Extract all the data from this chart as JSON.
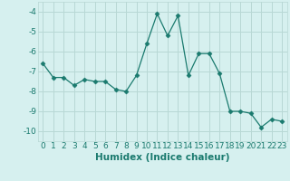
{
  "x": [
    0,
    1,
    2,
    3,
    4,
    5,
    6,
    7,
    8,
    9,
    10,
    11,
    12,
    13,
    14,
    15,
    16,
    17,
    18,
    19,
    20,
    21,
    22,
    23
  ],
  "y": [
    -6.6,
    -7.3,
    -7.3,
    -7.7,
    -7.4,
    -7.5,
    -7.5,
    -7.9,
    -8.0,
    -7.2,
    -5.6,
    -4.1,
    -5.2,
    -4.2,
    -7.2,
    -6.1,
    -6.1,
    -7.1,
    -9.0,
    -9.0,
    -9.1,
    -9.8,
    -9.4,
    -9.5
  ],
  "xlabel": "Humidex (Indice chaleur)",
  "ylim": [
    -10.5,
    -3.5
  ],
  "xlim": [
    -0.5,
    23.5
  ],
  "yticks": [
    -10,
    -9,
    -8,
    -7,
    -6,
    -5,
    -4
  ],
  "xticks": [
    0,
    1,
    2,
    3,
    4,
    5,
    6,
    7,
    8,
    9,
    10,
    11,
    12,
    13,
    14,
    15,
    16,
    17,
    18,
    19,
    20,
    21,
    22,
    23
  ],
  "line_color": "#1a7a6e",
  "marker": "D",
  "marker_size": 2.5,
  "bg_color": "#d6f0ef",
  "grid_color": "#b8d8d5",
  "tick_label_fontsize": 6.5,
  "xlabel_fontsize": 7.5
}
